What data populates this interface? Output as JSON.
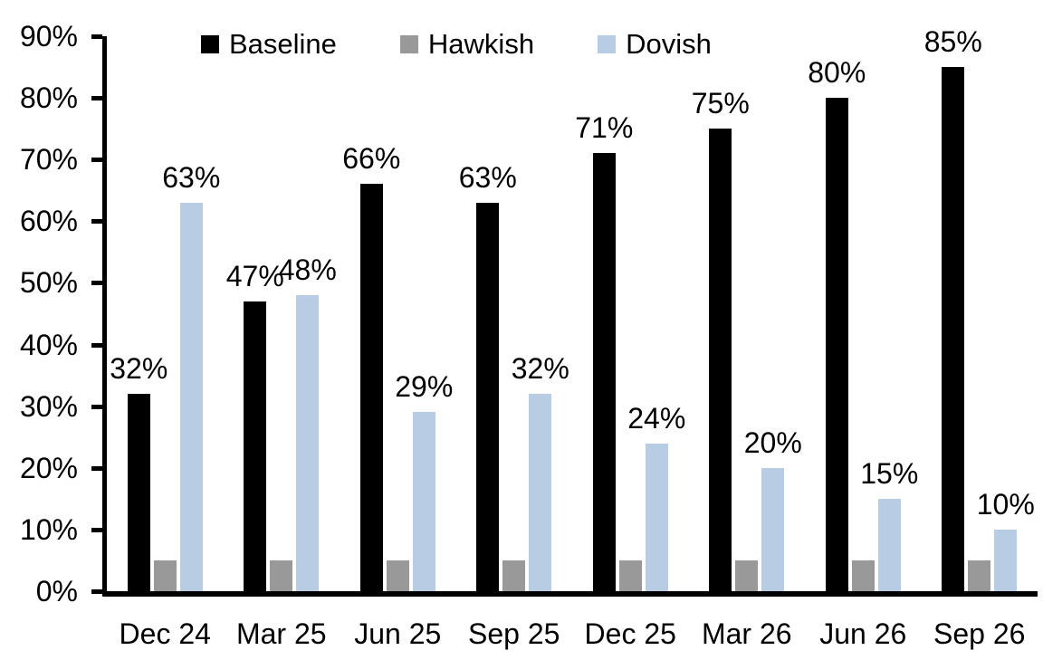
{
  "chart_data": {
    "type": "bar",
    "title": "",
    "categories": [
      "Dec 24",
      "Mar 25",
      "Jun 25",
      "Sep 25",
      "Dec 25",
      "Mar 26",
      "Jun 26",
      "Sep 26"
    ],
    "series": [
      {
        "name": "Baseline",
        "color": "#000000",
        "values": [
          32,
          47,
          66,
          63,
          71,
          75,
          80,
          85
        ],
        "labels": [
          "32%",
          "47%",
          "66%",
          "63%",
          "71%",
          "75%",
          "80%",
          "85%"
        ]
      },
      {
        "name": "Hawkish",
        "color": "#999999",
        "values": [
          5,
          5,
          5,
          5,
          5,
          5,
          5,
          5
        ],
        "labels": null
      },
      {
        "name": "Dovish",
        "color": "#B8CCE3",
        "values": [
          63,
          48,
          29,
          32,
          24,
          20,
          15,
          10
        ],
        "labels": [
          "63%",
          "48%",
          "29%",
          "32%",
          "24%",
          "20%",
          "15%",
          "10%"
        ]
      }
    ],
    "y_axis": {
      "min": 0,
      "max": 90,
      "step": 10,
      "tick_labels": [
        "0%",
        "10%",
        "20%",
        "30%",
        "40%",
        "50%",
        "60%",
        "70%",
        "80%",
        "90%"
      ]
    },
    "legend": {
      "position": "top",
      "entries": [
        "Baseline",
        "Hawkish",
        "Dovish"
      ]
    },
    "grid": false
  }
}
